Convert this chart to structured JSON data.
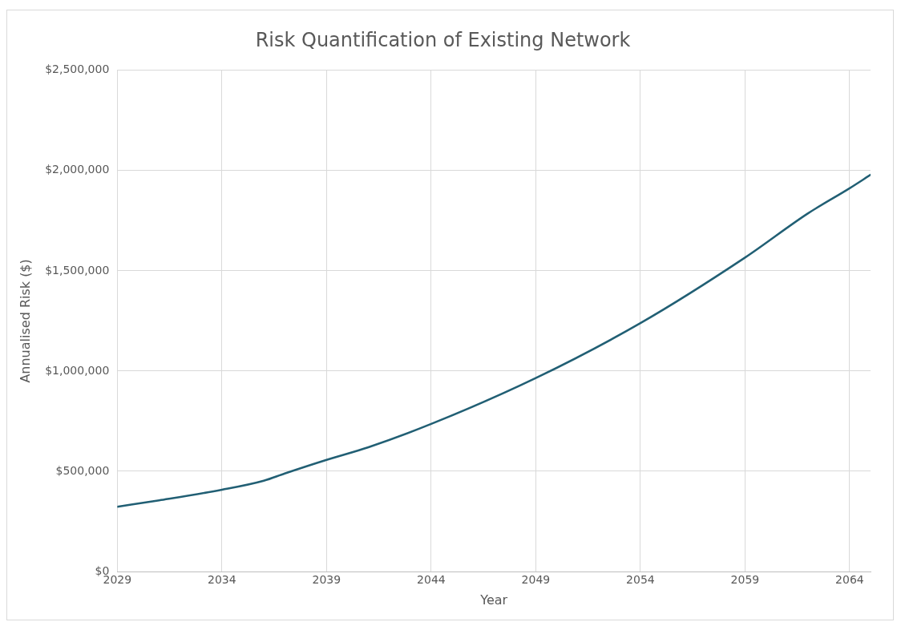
{
  "chart_data": {
    "type": "line",
    "title": "Risk Quantification of Existing Network",
    "xlabel": "Year",
    "ylabel": "Annualised Risk ($)",
    "x": [
      2029,
      2031,
      2034,
      2036,
      2037,
      2039,
      2041,
      2044,
      2049,
      2054,
      2059,
      2062,
      2064,
      2065
    ],
    "series": [
      {
        "color": "#215f74",
        "values": [
          323000,
          355000,
          408000,
          453000,
          489000,
          557000,
          620000,
          736000,
          965000,
          1239000,
          1566000,
          1786000,
          1912000,
          1979000
        ]
      }
    ],
    "xlim": [
      2029,
      2065
    ],
    "xticks": [
      2029,
      2034,
      2039,
      2044,
      2049,
      2054,
      2059,
      2064
    ],
    "ylim": [
      0,
      2500000
    ],
    "yticks": [
      {
        "value": 0,
        "label": "$0"
      },
      {
        "value": 500000,
        "label": "$500,000"
      },
      {
        "value": 1000000,
        "label": "$1,000,000"
      },
      {
        "value": 1500000,
        "label": "$1,500,000"
      },
      {
        "value": 2000000,
        "label": "$2,000,000"
      },
      {
        "value": 2500000,
        "label": "$2,500,000"
      }
    ],
    "grid": true,
    "legend": false,
    "marker": "none",
    "line_style": "solid"
  }
}
